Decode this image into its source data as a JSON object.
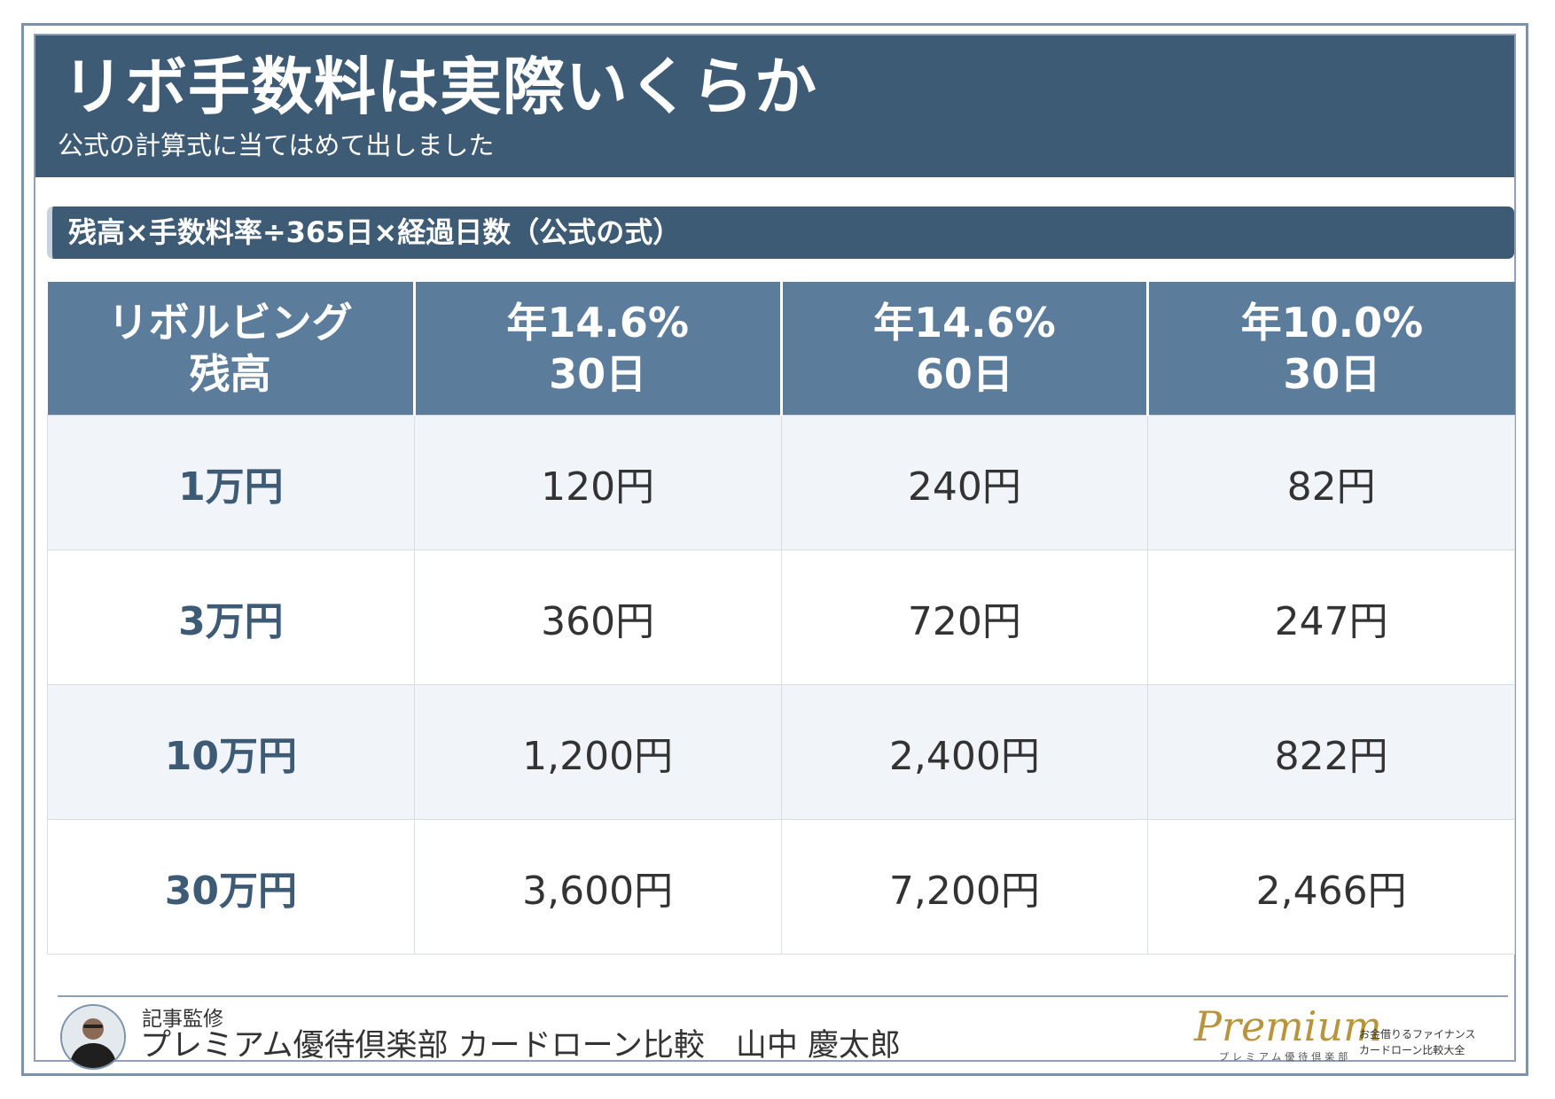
{
  "header": {
    "title": "リボ手数料は実際いくらか",
    "subtitle": "公式の計算式に当てはめて出しました"
  },
  "formula": "残高×手数料率÷365日×経過日数（公式の式）",
  "table": {
    "headers": [
      {
        "line1": "リボルビング",
        "line2": "残高"
      },
      {
        "line1": "年14.6%",
        "line2": "30日"
      },
      {
        "line1": "年14.6%",
        "line2": "60日"
      },
      {
        "line1": "年10.0%",
        "line2": "30日"
      }
    ],
    "rows": [
      {
        "balance": "1万円",
        "v1": "120円",
        "v2": "240円",
        "v3": "82円"
      },
      {
        "balance": "3万円",
        "v1": "360円",
        "v2": "720円",
        "v3": "247円"
      },
      {
        "balance": "10万円",
        "v1": "1,200円",
        "v2": "2,400円",
        "v3": "822円"
      },
      {
        "balance": "30万円",
        "v1": "3,600円",
        "v2": "7,200円",
        "v3": "2,466円"
      }
    ]
  },
  "footer": {
    "label": "記事監修",
    "supervisor": "プレミアム優待倶楽部 カードローン比較　山中 慶太郎",
    "logo": {
      "script": "Premium",
      "kana": "プレミアム優待倶楽部",
      "side_line1": "お金借りるファイナンス",
      "side_line2": "カードローン比較大全"
    }
  },
  "colors": {
    "header_bg": "#3e5b76",
    "table_header_bg": "#5b7c9b",
    "row_shade": "#f1f4f8",
    "logo_gold": "#b8943d"
  }
}
